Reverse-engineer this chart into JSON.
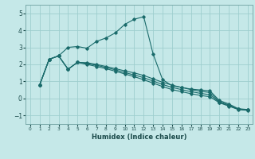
{
  "xlabel": "Humidex (Indice chaleur)",
  "xlim": [
    -0.5,
    23.5
  ],
  "ylim": [
    -1.5,
    5.5
  ],
  "yticks": [
    -1,
    0,
    1,
    2,
    3,
    4,
    5
  ],
  "xticks": [
    0,
    1,
    2,
    3,
    4,
    5,
    6,
    7,
    8,
    9,
    10,
    11,
    12,
    13,
    14,
    15,
    16,
    17,
    18,
    19,
    20,
    21,
    22,
    23
  ],
  "background_color": "#c5e8e8",
  "grid_color": "#9ecece",
  "line_color": "#1a6b6b",
  "series": [
    {
      "x": [
        1,
        2,
        3,
        4,
        5,
        6,
        7,
        8,
        9,
        10,
        11,
        12,
        13,
        14,
        15,
        16,
        17,
        18,
        19,
        20,
        21,
        22,
        23
      ],
      "y": [
        0.8,
        2.3,
        2.5,
        3.0,
        3.05,
        2.95,
        3.35,
        3.55,
        3.85,
        4.35,
        4.65,
        4.8,
        2.6,
        1.1,
        0.75,
        0.65,
        0.55,
        0.5,
        0.45,
        -0.12,
        -0.32,
        -0.6,
        -0.65
      ]
    },
    {
      "x": [
        1,
        2,
        3,
        4,
        5,
        6,
        7,
        8,
        9,
        10,
        11,
        12,
        13,
        14,
        15,
        16,
        17,
        18,
        19,
        20,
        21,
        22,
        23
      ],
      "y": [
        0.8,
        2.3,
        2.5,
        1.72,
        2.12,
        2.1,
        2.0,
        1.88,
        1.75,
        1.62,
        1.5,
        1.35,
        1.15,
        0.95,
        0.78,
        0.65,
        0.52,
        0.42,
        0.35,
        -0.18,
        -0.38,
        -0.62,
        -0.67
      ]
    },
    {
      "x": [
        1,
        2,
        3,
        4,
        5,
        6,
        7,
        8,
        9,
        10,
        11,
        12,
        13,
        14,
        15,
        16,
        17,
        18,
        19,
        20,
        21,
        22,
        23
      ],
      "y": [
        0.8,
        2.3,
        2.5,
        1.72,
        2.12,
        2.05,
        1.95,
        1.82,
        1.68,
        1.52,
        1.38,
        1.22,
        1.02,
        0.82,
        0.65,
        0.52,
        0.4,
        0.3,
        0.22,
        -0.22,
        -0.42,
        -0.63,
        -0.68
      ]
    },
    {
      "x": [
        1,
        2,
        3,
        4,
        5,
        6,
        7,
        8,
        9,
        10,
        11,
        12,
        13,
        14,
        15,
        16,
        17,
        18,
        19,
        20,
        21,
        22,
        23
      ],
      "y": [
        0.8,
        2.3,
        2.5,
        1.72,
        2.12,
        2.0,
        1.88,
        1.75,
        1.6,
        1.44,
        1.28,
        1.1,
        0.9,
        0.7,
        0.52,
        0.4,
        0.28,
        0.18,
        0.1,
        -0.25,
        -0.45,
        -0.65,
        -0.7
      ]
    }
  ]
}
